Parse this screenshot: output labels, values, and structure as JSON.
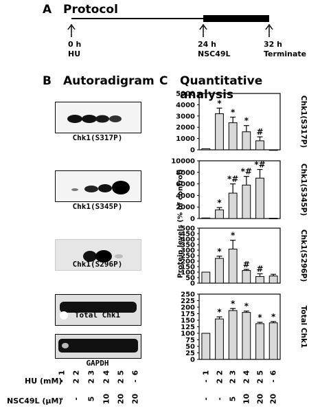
{
  "panelA": {
    "letter": "A",
    "title": "Protocol",
    "t0": "0 h",
    "t0_label": "HU",
    "t1": "24 h",
    "t1_label": "NSC49L",
    "t2": "32 h",
    "t2_label": "Terminate"
  },
  "panelB": {
    "letter": "B",
    "title": "Autoradigram",
    "blots": [
      {
        "caption": "Chk1(S317P)"
      },
      {
        "caption": "Chk1(S345P)"
      },
      {
        "caption": "Chk1(S296P)"
      },
      {
        "caption": "Total Chk1"
      },
      {
        "caption": "GAPDH"
      }
    ]
  },
  "panelC": {
    "letter": "C",
    "title": "Quantitative analysis",
    "ylabel": "Protein levels (% of control)"
  },
  "table": {
    "lanes": [
      "1",
      "2",
      "3",
      "4",
      "5",
      "6"
    ],
    "hu_label": "HU (mM)",
    "hu": [
      "-",
      "2",
      "2",
      "2",
      "2",
      "-"
    ],
    "nsc_label": "NSC49L (μM)",
    "nsc": [
      "-",
      "-",
      "5",
      "10",
      "20",
      "20"
    ]
  },
  "chart_data": [
    {
      "type": "bar",
      "title": "Chk1(S317P)",
      "categories": [
        "1",
        "2",
        "3",
        "4",
        "5",
        "6"
      ],
      "values": [
        100,
        3200,
        2400,
        1600,
        800,
        0
      ],
      "errors": [
        0,
        500,
        500,
        550,
        350,
        0
      ],
      "marks": [
        "",
        "*",
        "*",
        "*",
        "#",
        ""
      ],
      "ylim": [
        0,
        5000
      ],
      "yticks": [
        0,
        1000,
        2000,
        3000,
        4000,
        5000
      ]
    },
    {
      "type": "bar",
      "title": "Chk1(S345P)",
      "categories": [
        "1",
        "2",
        "3",
        "4",
        "5",
        "6"
      ],
      "values": [
        100,
        1500,
        4400,
        5800,
        7000,
        50
      ],
      "errors": [
        0,
        400,
        1600,
        1500,
        1500,
        0
      ],
      "marks": [
        "",
        "*",
        "*#",
        "*#",
        "*#",
        ""
      ],
      "ylim": [
        0,
        10000
      ],
      "yticks": [
        0,
        2000,
        4000,
        6000,
        8000,
        10000
      ]
    },
    {
      "type": "bar",
      "title": "Chk1(S296P)",
      "categories": [
        "1",
        "2",
        "3",
        "4",
        "5",
        "6"
      ],
      "values": [
        100,
        225,
        310,
        115,
        60,
        65
      ],
      "errors": [
        0,
        20,
        80,
        10,
        25,
        15
      ],
      "marks": [
        "",
        "*",
        "*",
        "#",
        "#",
        ""
      ],
      "ylim": [
        0,
        500
      ],
      "yticks": [
        0,
        50,
        100,
        150,
        200,
        250,
        300,
        350,
        400,
        450,
        500
      ]
    },
    {
      "type": "bar",
      "title": "Total Chk1",
      "categories": [
        "1",
        "2",
        "3",
        "4",
        "5",
        "6"
      ],
      "values": [
        100,
        155,
        187,
        180,
        137,
        140
      ],
      "errors": [
        0,
        8,
        8,
        5,
        5,
        5
      ],
      "marks": [
        "",
        "*",
        "*",
        "*",
        "*",
        "*"
      ],
      "ylim": [
        0,
        250
      ],
      "yticks": [
        0,
        25,
        50,
        75,
        100,
        125,
        150,
        175,
        200,
        225,
        250
      ]
    }
  ]
}
